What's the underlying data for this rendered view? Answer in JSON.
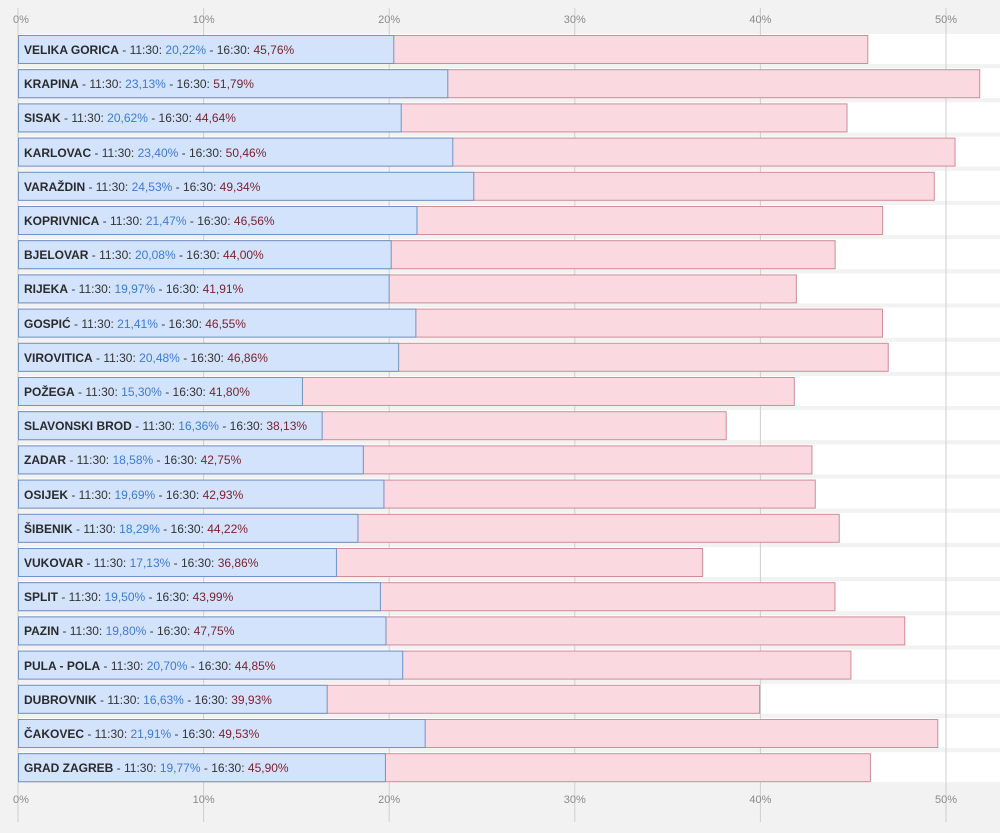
{
  "colors": {
    "bar_1130_fill": "#d3e3fb",
    "bar_1130_stroke": "#6f93c9",
    "bar_1630_fill": "#fbd9e0",
    "bar_1630_stroke": "#d28b98",
    "value_1130_text": "#3c7bd6",
    "value_1630_text": "#7a1f2b",
    "background": "#f2f2f2",
    "row_band": "#ffffff",
    "grid": "#cfcfcf"
  },
  "chart_data": {
    "type": "bar",
    "orientation": "horizontal",
    "grid": true,
    "xlim": [
      0,
      52.5
    ],
    "x_ticks": [
      "0%",
      "10%",
      "20%",
      "30%",
      "40%",
      "50%"
    ],
    "x_tick_values": [
      0,
      10,
      20,
      30,
      40,
      50
    ],
    "categories": [
      "VELIKA GORICA",
      "KRAPINA",
      "SISAK",
      "KARLOVAC",
      "VARAŽDIN",
      "KOPRIVNICA",
      "BJELOVAR",
      "RIJEKA",
      "GOSPIĆ",
      "VIROVITICA",
      "POŽEGA",
      "SLAVONSKI BROD",
      "ZADAR",
      "OSIJEK",
      "ŠIBENIK",
      "VUKOVAR",
      "SPLIT",
      "PAZIN",
      "PULA - POLA",
      "DUBROVNIK",
      "ČAKOVEC",
      "GRAD ZAGREB"
    ],
    "series": [
      {
        "name": "11:30",
        "values": [
          20.22,
          23.13,
          20.62,
          23.4,
          24.53,
          21.47,
          20.08,
          19.97,
          21.41,
          20.48,
          15.3,
          16.36,
          18.58,
          19.69,
          18.29,
          17.13,
          19.5,
          19.8,
          20.7,
          16.63,
          21.91,
          19.77
        ],
        "labels": [
          "20,22%",
          "23,13%",
          "20,62%",
          "23,40%",
          "24,53%",
          "21,47%",
          "20,08%",
          "19,97%",
          "21,41%",
          "20,48%",
          "15,30%",
          "16,36%",
          "18,58%",
          "19,69%",
          "18,29%",
          "17,13%",
          "19,50%",
          "19,80%",
          "20,70%",
          "16,63%",
          "21,91%",
          "19,77%"
        ]
      },
      {
        "name": "16:30",
        "values": [
          45.76,
          51.79,
          44.64,
          50.46,
          49.34,
          46.56,
          44.0,
          41.91,
          46.55,
          46.86,
          41.8,
          38.13,
          42.75,
          42.93,
          44.22,
          36.86,
          43.99,
          47.75,
          44.85,
          39.93,
          49.53,
          45.9
        ],
        "labels": [
          "45,76%",
          "51,79%",
          "44,64%",
          "50,46%",
          "49,34%",
          "46,56%",
          "44,00%",
          "41,91%",
          "46,55%",
          "46,86%",
          "41,80%",
          "38,13%",
          "42,75%",
          "42,93%",
          "44,22%",
          "36,86%",
          "43,99%",
          "47,75%",
          "44,85%",
          "39,93%",
          "49,53%",
          "45,90%"
        ]
      }
    ],
    "label_separator": " - "
  }
}
